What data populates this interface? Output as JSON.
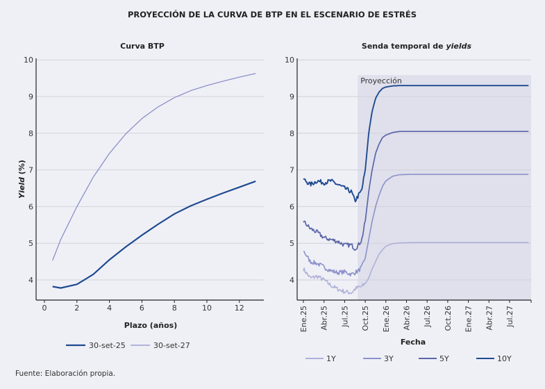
{
  "title": "PROYECCIÓN DE LA CURVA DE BTP EN EL ESCENARIO DE ESTRÉS",
  "source": "Fuente: Elaboración propia.",
  "chart_data": [
    {
      "type": "line",
      "title": "Curva BTP",
      "xlabel": "Plazo (años)",
      "ylabel_italic": "Yield",
      "ylabel_rest": " (%)",
      "xlim": [
        -0.5,
        14.5
      ],
      "ylim": [
        3.45,
        10
      ],
      "xticks": [
        0,
        2,
        4,
        6,
        8,
        10,
        12
      ],
      "yticks": [
        4,
        5,
        6,
        7,
        8,
        9,
        10
      ],
      "grid": true,
      "legend_position": "bottom",
      "x": [
        0.5,
        1,
        2,
        3,
        4,
        5,
        6,
        7,
        8,
        9,
        10,
        11,
        12,
        13
      ],
      "series": [
        {
          "name": "30-set-25",
          "color": "#1f4a91",
          "width": 2.2,
          "values": [
            3.82,
            3.78,
            3.88,
            4.15,
            4.55,
            4.9,
            5.22,
            5.52,
            5.8,
            6.02,
            6.2,
            6.37,
            6.53,
            6.69
          ]
        },
        {
          "name": "30-set-27",
          "color": "#8b90c8",
          "width": 1.3,
          "values": [
            4.53,
            5.1,
            6.0,
            6.8,
            7.45,
            7.98,
            8.4,
            8.72,
            8.97,
            9.16,
            9.3,
            9.42,
            9.53,
            9.63
          ]
        }
      ]
    },
    {
      "type": "line",
      "title_prefix": "Senda temporal de ",
      "title_italic": "yields",
      "xlabel": "Fecha",
      "ylim": [
        3.45,
        10
      ],
      "yticks": [
        4,
        5,
        6,
        7,
        8,
        9,
        10
      ],
      "grid": true,
      "legend_position": "bottom",
      "annotation": "Proyección",
      "projection_start_month": 7.9,
      "xlim_months": [
        -0.9,
        32.8
      ],
      "xtick_labels": [
        "Ene.25",
        "Abr.25",
        "Jul.25",
        "Oct.25",
        "Ene.26",
        "Abr.26",
        "Jul.26",
        "Oct.26",
        "Ene.27",
        "Abr.27",
        "Jul.27"
      ],
      "xtick_months": [
        0,
        3,
        6,
        9,
        12,
        15,
        18,
        21,
        24,
        27,
        30
      ],
      "x_months": [
        0,
        1,
        2,
        3,
        4,
        5,
        6,
        7,
        7.5,
        8,
        8.5,
        9,
        9.5,
        10,
        10.5,
        11,
        11.5,
        12,
        13,
        14,
        16,
        20,
        24,
        28,
        32.8
      ],
      "series": [
        {
          "name": "1Y",
          "color": "#aeb1d9",
          "width": 1.6,
          "values": [
            4.3,
            4.05,
            4.1,
            4.0,
            3.85,
            3.75,
            3.68,
            3.65,
            3.75,
            3.8,
            3.82,
            3.9,
            4.05,
            4.3,
            4.5,
            4.7,
            4.82,
            4.92,
            4.99,
            5.01,
            5.02,
            5.02,
            5.02,
            5.02,
            5.02
          ]
        },
        {
          "name": "3Y",
          "color": "#8c91c9",
          "width": 1.6,
          "values": [
            4.8,
            4.5,
            4.45,
            4.35,
            4.25,
            4.2,
            4.22,
            4.15,
            4.2,
            4.25,
            4.35,
            4.6,
            5.1,
            5.6,
            6.0,
            6.3,
            6.55,
            6.7,
            6.83,
            6.87,
            6.88,
            6.88,
            6.88,
            6.88,
            6.88
          ]
        },
        {
          "name": "5Y",
          "color": "#5a65a8",
          "width": 1.7,
          "values": [
            5.6,
            5.4,
            5.3,
            5.15,
            5.1,
            5.05,
            4.95,
            4.95,
            4.85,
            4.95,
            5.1,
            5.6,
            6.4,
            7.0,
            7.45,
            7.7,
            7.88,
            7.95,
            8.02,
            8.05,
            8.05,
            8.05,
            8.05,
            8.05,
            8.05
          ]
        },
        {
          "name": "10Y",
          "color": "#1f4a91",
          "width": 1.9,
          "values": [
            6.75,
            6.6,
            6.7,
            6.65,
            6.7,
            6.6,
            6.5,
            6.4,
            6.15,
            6.3,
            6.45,
            7.0,
            8.0,
            8.6,
            8.95,
            9.12,
            9.22,
            9.26,
            9.29,
            9.3,
            9.3,
            9.3,
            9.3,
            9.3,
            9.3
          ]
        }
      ]
    }
  ]
}
